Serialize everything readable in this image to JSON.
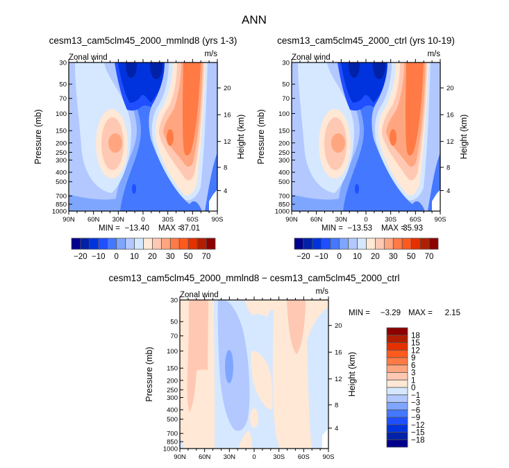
{
  "title": "ANN",
  "min_label": "MIN =",
  "max_label": "MAX =",
  "colors": {
    "top_palette": [
      "#00008c",
      "#0021a8",
      "#0033dd",
      "#1f4fff",
      "#4478ff",
      "#7fa6ff",
      "#b2c8ff",
      "#d5e8ff",
      "#ffe8d5",
      "#ffc8b2",
      "#ffa680",
      "#ff7a45",
      "#ff5a1e",
      "#e53000",
      "#b21f00",
      "#8c0000"
    ],
    "missing": "#ffffff"
  },
  "chart_data": [
    {
      "type": "heatmap",
      "title": "cesm13_cam5clm45_2000_mmlnd8 (yrs 1-3)",
      "left_string": "Zonal wind",
      "right_string": "m/s",
      "ylabel": "Pressure (mb)",
      "ylabel_right": "Height (km)",
      "x_ticks": [
        "90N",
        "60N",
        "30N",
        "0",
        "30S",
        "60S",
        "90S"
      ],
      "y_ticks": [
        30,
        50,
        70,
        100,
        150,
        200,
        250,
        300,
        400,
        500,
        700,
        850,
        1000
      ],
      "y_right_ticks": [
        4,
        8,
        12,
        16,
        20
      ],
      "y_scale": "log",
      "ylim": [
        1000,
        30
      ],
      "min": "-13.40",
      "max": "37.01",
      "colorbar": {
        "orientation": "horizontal",
        "levels": [
          -20,
          -15,
          -10,
          -5,
          0,
          5,
          10,
          15,
          20,
          25,
          30,
          40,
          50,
          60,
          70
        ],
        "labels": [
          "-20",
          "-10",
          "0",
          "10",
          "20",
          "30",
          "50",
          "70"
        ]
      }
    },
    {
      "type": "heatmap",
      "title": "cesm13_cam5clm45_2000_ctrl (yrs 10-19)",
      "left_string": "Zonal wind",
      "right_string": "m/s",
      "ylabel": "Pressure (mb)",
      "ylabel_right": "Height (km)",
      "x_ticks": [
        "90N",
        "60N",
        "30N",
        "0",
        "30S",
        "60S",
        "90S"
      ],
      "y_ticks": [
        30,
        50,
        70,
        100,
        150,
        200,
        250,
        300,
        400,
        500,
        700,
        850,
        1000
      ],
      "y_right_ticks": [
        4,
        8,
        12,
        16,
        20
      ],
      "y_scale": "log",
      "ylim": [
        1000,
        30
      ],
      "min": "-13.53",
      "max": "35.93",
      "colorbar": {
        "orientation": "horizontal",
        "levels": [
          -20,
          -15,
          -10,
          -5,
          0,
          5,
          10,
          15,
          20,
          25,
          30,
          40,
          50,
          60,
          70
        ],
        "labels": [
          "-20",
          "-10",
          "0",
          "10",
          "20",
          "30",
          "50",
          "70"
        ]
      }
    },
    {
      "type": "heatmap",
      "title": "cesm13_cam5clm45_2000_mmlnd8 - cesm13_cam5clm45_2000_ctrl",
      "left_string": "Zonal wind",
      "right_string": "m/s",
      "ylabel": "Pressure (mb)",
      "ylabel_right": "Height (km)",
      "x_ticks": [
        "90N",
        "60N",
        "30N",
        "0",
        "30S",
        "60S",
        "90S"
      ],
      "y_ticks": [
        30,
        50,
        70,
        100,
        150,
        200,
        250,
        300,
        400,
        500,
        700,
        850,
        1000
      ],
      "y_right_ticks": [
        4,
        8,
        12,
        16,
        20
      ],
      "y_scale": "log",
      "ylim": [
        1000,
        30
      ],
      "min": "-3.29",
      "max": "2.15",
      "colorbar": {
        "orientation": "vertical",
        "levels": [
          -18,
          -15,
          -12,
          -9,
          -6,
          -3,
          -1,
          0,
          1,
          3,
          6,
          9,
          12,
          15,
          18
        ],
        "labels": [
          "-18",
          "-15",
          "-12",
          "-9",
          "-6",
          "-3",
          "-1",
          "0",
          "1",
          "3",
          "6",
          "9",
          "12",
          "15",
          "18"
        ]
      }
    }
  ]
}
